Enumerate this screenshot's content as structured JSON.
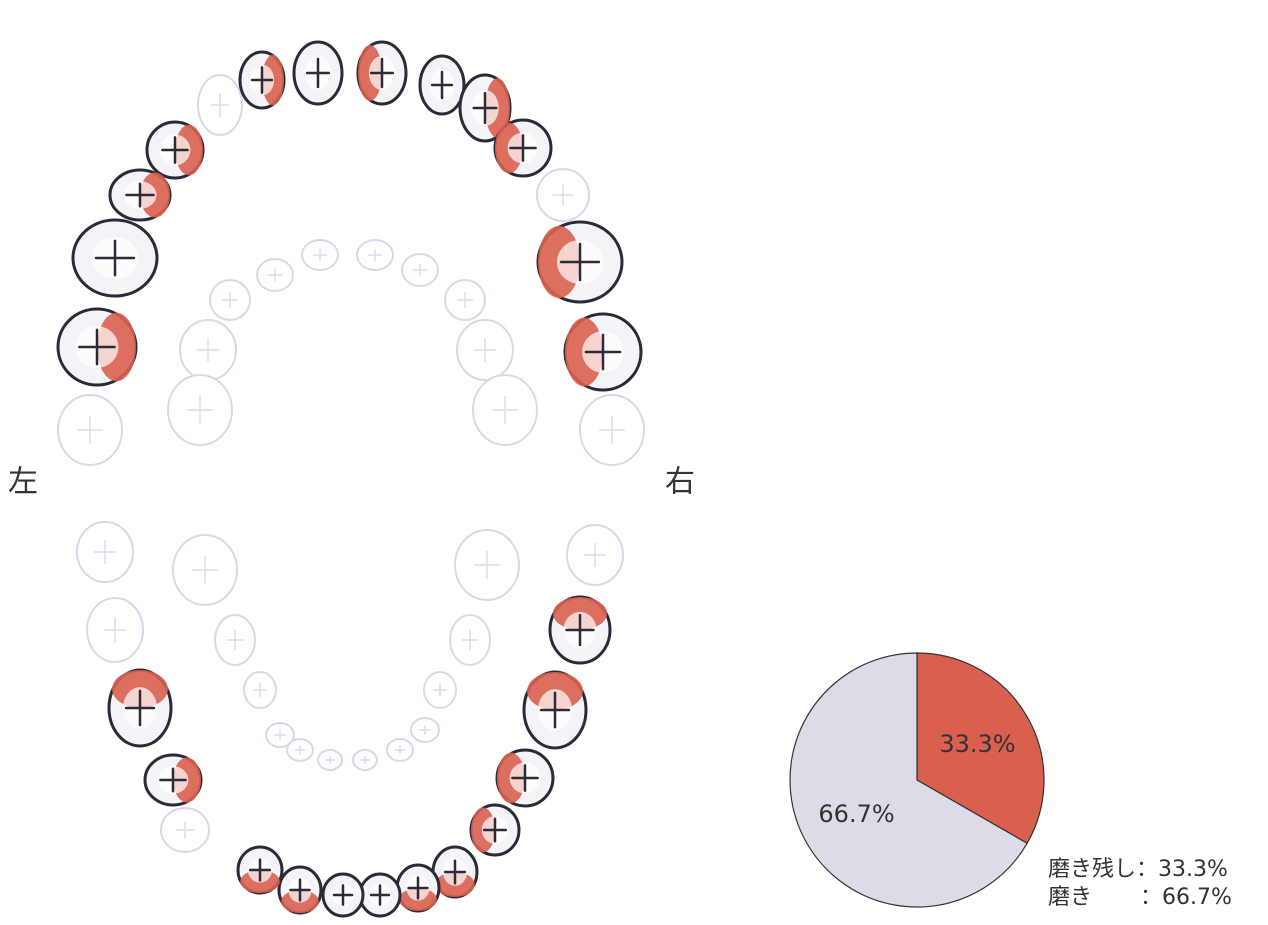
{
  "labels": {
    "left": "左",
    "right": "右"
  },
  "chart_data": {
    "type": "pie",
    "categories": [
      "磨き残し",
      "磨き"
    ],
    "values": [
      33.3,
      66.7
    ],
    "value_labels": [
      "33.3%",
      "66.7%"
    ],
    "colors": [
      "#d9604f",
      "#dcdce6"
    ],
    "legend_separator": "："
  }
}
